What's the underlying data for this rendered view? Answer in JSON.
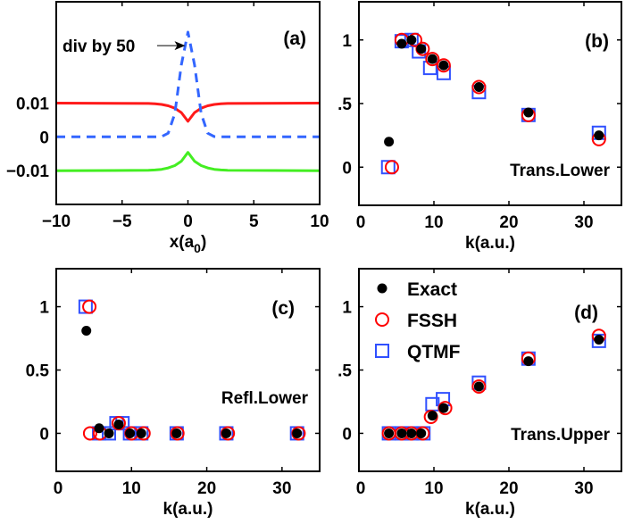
{
  "colors": {
    "exact": "#000000",
    "fssh": "#ff0000",
    "qtmf": "#3050ff",
    "red_line": "#ff1a1a",
    "blue_line": "#3366ff",
    "green_line": "#44ee22"
  },
  "chart_data": [
    {
      "id": "a",
      "type": "line",
      "panel_label": "(a)",
      "xlabel": "x(a",
      "xlabel_sub": "0",
      "xlabel_end": ")",
      "xlim": [
        -10,
        10
      ],
      "ylim": [
        -0.02,
        0.04
      ],
      "xticks": [
        -10,
        -5,
        0,
        5,
        10
      ],
      "xtick_labels": [
        "−10",
        "−5",
        "0",
        "5",
        "10"
      ],
      "yticks": [
        0.01,
        0,
        -0.01
      ],
      "ytick_labels": [
        "0.01",
        "0",
        "−0.01"
      ],
      "annotation": {
        "text": "div by 50",
        "points_to": [
          0,
          0.027
        ]
      },
      "x": [
        -10,
        -3,
        -2.5,
        -2,
        -1.5,
        -1,
        -0.5,
        0,
        0.5,
        1,
        1.5,
        2,
        2.5,
        3,
        10
      ],
      "series": [
        {
          "color": "red",
          "style": "solid",
          "values": [
            0.01,
            0.0099,
            0.0098,
            0.0096,
            0.0092,
            0.0085,
            0.0072,
            0.0046,
            0.0072,
            0.0085,
            0.0092,
            0.0096,
            0.0098,
            0.0099,
            0.01
          ]
        },
        {
          "color": "blue",
          "style": "dashed",
          "values": [
            0,
            0,
            0,
            0.0001,
            0.0011,
            0.0069,
            0.0213,
            0.031,
            0.0213,
            0.0069,
            0.0011,
            0.0001,
            0,
            0,
            0
          ]
        },
        {
          "color": "green",
          "style": "solid",
          "values": [
            -0.01,
            -0.0099,
            -0.0098,
            -0.0096,
            -0.0092,
            -0.0085,
            -0.0072,
            -0.0046,
            -0.0072,
            -0.0085,
            -0.0092,
            -0.0096,
            -0.0098,
            -0.0099,
            -0.01
          ]
        }
      ]
    },
    {
      "id": "b",
      "type": "scatter",
      "panel_label": "(b)",
      "annotation": {
        "text": "Trans.Lower"
      },
      "xlabel": "k(a.u.)",
      "xlim": [
        0,
        35
      ],
      "ylim": [
        -0.3,
        1.3
      ],
      "xticks": [
        0,
        10,
        20,
        30
      ],
      "xtick_labels": [
        "0",
        "10",
        "20",
        "30"
      ],
      "yticks": [
        1,
        0.5,
        0
      ],
      "ytick_labels": [
        "1",
        ".5",
        "0"
      ],
      "series": [
        {
          "name": "Exact",
          "marker": "dot",
          "points": [
            [
              4,
              0.2
            ],
            [
              5.7,
              0.97
            ],
            [
              7,
              1.0
            ],
            [
              8.3,
              0.93
            ],
            [
              9.8,
              0.85
            ],
            [
              11.3,
              0.8
            ],
            [
              16,
              0.63
            ],
            [
              22.6,
              0.43
            ],
            [
              32,
              0.25
            ]
          ]
        },
        {
          "name": "FSSH",
          "marker": "circle",
          "points": [
            [
              4.4,
              0
            ],
            [
              5.7,
              1.0
            ],
            [
              7.5,
              1.0
            ],
            [
              8.5,
              0.93
            ],
            [
              9.8,
              0.85
            ],
            [
              11.3,
              0.8
            ],
            [
              16,
              0.63
            ],
            [
              22.6,
              0.41
            ],
            [
              32,
              0.22
            ]
          ]
        },
        {
          "name": "QTMF",
          "marker": "square",
          "points": [
            [
              3.9,
              0
            ],
            [
              5.7,
              0.99
            ],
            [
              7,
              1.0
            ],
            [
              8,
              0.91
            ],
            [
              9.5,
              0.78
            ],
            [
              11.3,
              0.74
            ],
            [
              16,
              0.59
            ],
            [
              22.6,
              0.41
            ],
            [
              32,
              0.27
            ]
          ]
        }
      ]
    },
    {
      "id": "c",
      "type": "scatter",
      "panel_label": "(c)",
      "annotation": {
        "text": "Refl.Lower"
      },
      "xlabel": "k(a.u.)",
      "xlim": [
        0,
        35
      ],
      "ylim": [
        -0.3,
        1.3
      ],
      "xticks": [
        0,
        10,
        20,
        30
      ],
      "xtick_labels": [
        "0",
        "10",
        "20",
        "30"
      ],
      "yticks": [
        1,
        0.5,
        0
      ],
      "ytick_labels": [
        "1",
        "0.5",
        "0"
      ],
      "series": [
        {
          "name": "Exact",
          "marker": "dot",
          "points": [
            [
              4,
              0.81
            ],
            [
              5.7,
              0.04
            ],
            [
              7,
              0
            ],
            [
              8.3,
              0.07
            ],
            [
              9.8,
              0
            ],
            [
              11.3,
              0
            ],
            [
              16,
              0
            ],
            [
              22.6,
              0
            ],
            [
              32,
              0
            ]
          ]
        },
        {
          "name": "FSSH",
          "marker": "circle",
          "points": [
            [
              4.4,
              1.0
            ],
            [
              4.5,
              0
            ],
            [
              5.8,
              0
            ],
            [
              8.3,
              0.08
            ],
            [
              10,
              0
            ],
            [
              11.6,
              0
            ],
            [
              16.1,
              0
            ],
            [
              22.8,
              0
            ],
            [
              32.2,
              0
            ]
          ]
        },
        {
          "name": "QTMF",
          "marker": "square",
          "points": [
            [
              3.9,
              1.0
            ],
            [
              5.7,
              0
            ],
            [
              7,
              0
            ],
            [
              8,
              0.08
            ],
            [
              8.8,
              0.08
            ],
            [
              9.8,
              0
            ],
            [
              11.3,
              0
            ],
            [
              16,
              0
            ],
            [
              22.6,
              0
            ],
            [
              32,
              0
            ]
          ]
        }
      ]
    },
    {
      "id": "d",
      "type": "scatter",
      "panel_label": "(d)",
      "annotation": {
        "text": "Trans.Upper"
      },
      "xlabel": "k(a.u.)",
      "xlim": [
        0,
        35
      ],
      "ylim": [
        -0.3,
        1.3
      ],
      "xticks": [
        0,
        10,
        20,
        30
      ],
      "xtick_labels": [
        "0",
        "10",
        "20",
        "30"
      ],
      "yticks": [
        1,
        0.5,
        0
      ],
      "ytick_labels": [
        "1",
        ".5",
        "0"
      ],
      "legend": {
        "placement": "top-left",
        "entries": [
          "Exact",
          "FSSH",
          "QTMF"
        ]
      },
      "series": [
        {
          "name": "Exact",
          "marker": "dot",
          "points": [
            [
              4,
              0
            ],
            [
              5.7,
              0
            ],
            [
              7,
              0
            ],
            [
              8.3,
              0
            ],
            [
              9.8,
              0.14
            ],
            [
              11.3,
              0.2
            ],
            [
              16,
              0.37
            ],
            [
              22.6,
              0.57
            ],
            [
              32,
              0.74
            ]
          ]
        },
        {
          "name": "FSSH",
          "marker": "circle",
          "points": [
            [
              4,
              0
            ],
            [
              5.7,
              0
            ],
            [
              7,
              0
            ],
            [
              8.5,
              0
            ],
            [
              9.6,
              0.13
            ],
            [
              11.5,
              0.2
            ],
            [
              16,
              0.37
            ],
            [
              22.6,
              0.59
            ],
            [
              32,
              0.77
            ]
          ]
        },
        {
          "name": "QTMF",
          "marker": "square",
          "points": [
            [
              4,
              0
            ],
            [
              5.7,
              0
            ],
            [
              7,
              0
            ],
            [
              8.6,
              0
            ],
            [
              9.8,
              0.23
            ],
            [
              11.2,
              0.27
            ],
            [
              16,
              0.4
            ],
            [
              22.6,
              0.59
            ],
            [
              32,
              0.73
            ]
          ]
        }
      ]
    }
  ]
}
